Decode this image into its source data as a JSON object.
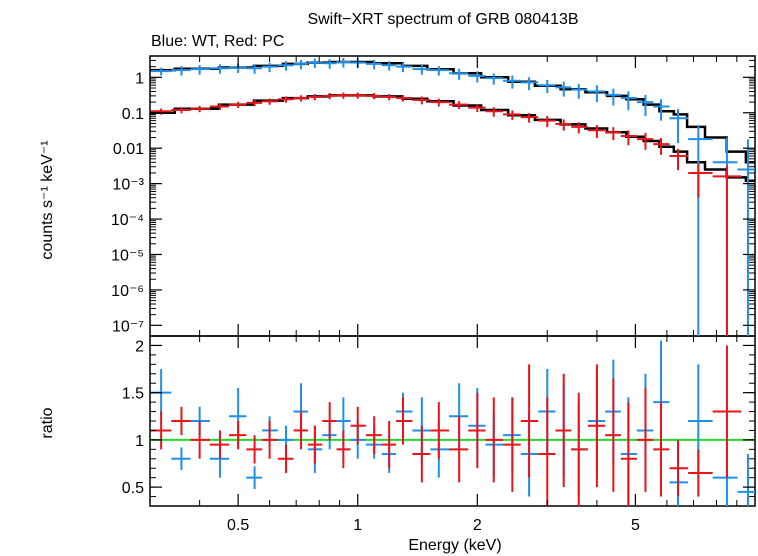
{
  "chart_data": [
    {
      "panel": "spectrum",
      "type": "scatter",
      "title": "Swift−XRT spectrum of GRB 080413B",
      "subtitle": "Blue: WT, Red: PC",
      "xlabel": "Energy (keV)",
      "ylabel": "counts s⁻¹ keV⁻¹",
      "xscale": "log",
      "yscale": "log",
      "xlim": [
        0.3,
        10
      ],
      "ylim": [
        5e-08,
        4
      ],
      "grid": false,
      "colors": {
        "WT": "#1f8fe8",
        "PC": "#e8141a",
        "model": "#000000"
      },
      "yticks": [
        {
          "value": 1,
          "label": "1"
        },
        {
          "value": 0.1,
          "label": "0.1"
        },
        {
          "value": 0.01,
          "label": "0.01"
        },
        {
          "value": 0.001,
          "label": "10⁻³"
        },
        {
          "value": 0.0001,
          "label": "10⁻⁴"
        },
        {
          "value": 1e-05,
          "label": "10⁻⁵"
        },
        {
          "value": 1e-06,
          "label": "10⁻⁶"
        },
        {
          "value": 1e-07,
          "label": "10⁻⁷"
        }
      ],
      "series": [
        {
          "id": "WT",
          "x": [
            0.32,
            0.36,
            0.4,
            0.45,
            0.5,
            0.55,
            0.6,
            0.66,
            0.72,
            0.78,
            0.85,
            0.92,
            1.0,
            1.1,
            1.2,
            1.3,
            1.45,
            1.6,
            1.8,
            2.0,
            2.2,
            2.45,
            2.7,
            3.0,
            3.3,
            3.6,
            4.0,
            4.4,
            4.8,
            5.3,
            5.8,
            6.4,
            7.2,
            8.5,
            9.6
          ],
          "y": [
            1.5,
            1.6,
            1.7,
            1.8,
            1.9,
            1.8,
            2.0,
            2.2,
            2.4,
            2.6,
            2.5,
            2.7,
            2.6,
            2.4,
            2.2,
            2.0,
            1.7,
            1.6,
            1.3,
            1.1,
            0.95,
            0.8,
            0.72,
            0.6,
            0.52,
            0.45,
            0.4,
            0.32,
            0.26,
            0.2,
            0.15,
            0.07,
            0.018,
            0.004,
            0.0025
          ],
          "err": [
            0.25,
            0.3,
            0.3,
            0.3,
            0.3,
            0.3,
            0.3,
            0.3,
            0.3,
            0.3,
            0.3,
            0.3,
            0.3,
            0.3,
            0.3,
            0.3,
            0.3,
            0.3,
            0.35,
            0.35,
            0.35,
            0.4,
            0.4,
            0.4,
            0.45,
            0.45,
            0.5,
            0.5,
            0.55,
            0.6,
            0.6,
            0.8,
            1.5,
            4.0,
            6.0
          ]
        },
        {
          "id": "PC",
          "x": [
            0.32,
            0.36,
            0.4,
            0.45,
            0.5,
            0.55,
            0.6,
            0.66,
            0.72,
            0.78,
            0.85,
            0.92,
            1.0,
            1.1,
            1.2,
            1.3,
            1.45,
            1.6,
            1.8,
            2.0,
            2.2,
            2.45,
            2.7,
            3.0,
            3.3,
            3.6,
            4.0,
            4.4,
            4.8,
            5.3,
            5.8,
            6.4,
            7.2,
            8.5
          ],
          "y": [
            0.11,
            0.12,
            0.13,
            0.15,
            0.17,
            0.19,
            0.21,
            0.24,
            0.26,
            0.28,
            0.3,
            0.31,
            0.31,
            0.3,
            0.28,
            0.26,
            0.23,
            0.2,
            0.17,
            0.14,
            0.11,
            0.09,
            0.075,
            0.06,
            0.048,
            0.04,
            0.032,
            0.028,
            0.022,
            0.018,
            0.013,
            0.006,
            0.002,
            0.0016
          ],
          "err": [
            0.2,
            0.2,
            0.2,
            0.2,
            0.2,
            0.2,
            0.2,
            0.2,
            0.2,
            0.2,
            0.2,
            0.2,
            0.2,
            0.2,
            0.2,
            0.2,
            0.25,
            0.25,
            0.25,
            0.25,
            0.3,
            0.3,
            0.3,
            0.35,
            0.35,
            0.35,
            0.4,
            0.4,
            0.45,
            0.5,
            0.5,
            0.6,
            0.8,
            1.0
          ]
        }
      ],
      "model_lines": [
        {
          "id": "WT-model",
          "x": [
            0.3,
            0.4,
            0.5,
            0.6,
            0.7,
            0.8,
            0.9,
            1.0,
            1.2,
            1.4,
            1.6,
            1.9,
            2.2,
            2.6,
            3.0,
            3.5,
            4.0,
            4.5,
            5.0,
            5.5,
            6.0,
            6.5,
            7.0,
            8.0,
            9.0,
            10.0
          ],
          "y": [
            1.6,
            1.75,
            1.9,
            2.1,
            2.4,
            2.6,
            2.7,
            2.7,
            2.5,
            2.1,
            1.7,
            1.3,
            1.0,
            0.75,
            0.58,
            0.46,
            0.38,
            0.3,
            0.24,
            0.17,
            0.11,
            0.09,
            0.04,
            0.02,
            0.008,
            0.004
          ]
        },
        {
          "id": "PC-model",
          "x": [
            0.3,
            0.4,
            0.5,
            0.6,
            0.7,
            0.8,
            0.9,
            1.0,
            1.2,
            1.4,
            1.6,
            1.9,
            2.2,
            2.6,
            3.0,
            3.5,
            4.0,
            4.5,
            5.0,
            5.5,
            6.0,
            6.5,
            7.0,
            8.0,
            9.0,
            10.0
          ],
          "y": [
            0.1,
            0.13,
            0.17,
            0.22,
            0.26,
            0.29,
            0.31,
            0.31,
            0.29,
            0.25,
            0.21,
            0.16,
            0.12,
            0.085,
            0.063,
            0.047,
            0.036,
            0.028,
            0.021,
            0.016,
            0.011,
            0.008,
            0.004,
            0.0025,
            0.0015,
            0.0012
          ]
        }
      ]
    },
    {
      "panel": "ratio",
      "type": "scatter",
      "xlabel": "Energy (keV)",
      "ylabel": "ratio",
      "xscale": "log",
      "xlim": [
        0.3,
        10
      ],
      "ylim": [
        0.3,
        2.1
      ],
      "grid": false,
      "reference_line": {
        "y": 1,
        "color": "#22dd22"
      },
      "xticks": [
        {
          "value": 0.5,
          "label": "0.5"
        },
        {
          "value": 1,
          "label": "1"
        },
        {
          "value": 2,
          "label": "2"
        },
        {
          "value": 5,
          "label": "5"
        }
      ],
      "yticks": [
        {
          "value": 0.5,
          "label": "0.5"
        },
        {
          "value": 1,
          "label": "1"
        },
        {
          "value": 1.5,
          "label": "1.5"
        },
        {
          "value": 2,
          "label": "2"
        }
      ],
      "series": [
        {
          "id": "WT",
          "x": [
            0.32,
            0.36,
            0.4,
            0.45,
            0.5,
            0.55,
            0.6,
            0.66,
            0.72,
            0.78,
            0.85,
            0.92,
            1.0,
            1.1,
            1.2,
            1.3,
            1.45,
            1.6,
            1.8,
            2.0,
            2.2,
            2.45,
            2.7,
            3.0,
            3.3,
            3.6,
            4.0,
            4.4,
            4.8,
            5.3,
            5.8,
            6.4,
            7.2,
            8.5,
            9.6
          ],
          "y": [
            1.5,
            0.8,
            1.2,
            0.8,
            1.25,
            0.6,
            1.1,
            1.0,
            1.3,
            0.9,
            1.05,
            1.2,
            1.0,
            0.95,
            0.85,
            1.3,
            1.1,
            0.9,
            1.25,
            1.15,
            0.95,
            1.05,
            0.85,
            1.3,
            1.1,
            0.9,
            1.2,
            1.3,
            0.85,
            1.1,
            1.4,
            0.55,
            1.2,
            0.6,
            0.45
          ],
          "err": [
            0.25,
            0.12,
            0.15,
            0.2,
            0.3,
            0.12,
            0.15,
            0.15,
            0.3,
            0.25,
            0.15,
            0.25,
            0.2,
            0.15,
            0.2,
            0.2,
            0.35,
            0.3,
            0.35,
            0.4,
            0.35,
            0.4,
            0.45,
            0.45,
            0.5,
            0.5,
            0.55,
            0.55,
            0.6,
            0.6,
            0.65,
            0.3,
            0.6,
            0.3,
            0.4
          ]
        },
        {
          "id": "PC",
          "x": [
            0.32,
            0.36,
            0.4,
            0.45,
            0.5,
            0.55,
            0.6,
            0.66,
            0.72,
            0.78,
            0.85,
            0.92,
            1.0,
            1.1,
            1.2,
            1.3,
            1.45,
            1.6,
            1.8,
            2.0,
            2.2,
            2.45,
            2.7,
            3.0,
            3.3,
            3.6,
            4.0,
            4.4,
            4.8,
            5.3,
            5.8,
            6.4,
            7.2,
            8.5
          ],
          "y": [
            1.1,
            1.2,
            1.0,
            0.95,
            1.05,
            0.9,
            1.0,
            0.8,
            1.1,
            0.95,
            1.2,
            0.9,
            1.15,
            1.05,
            0.95,
            1.2,
            0.85,
            1.1,
            0.9,
            1.1,
            1.0,
            0.95,
            1.2,
            0.85,
            1.1,
            0.9,
            1.15,
            1.05,
            0.8,
            1.0,
            0.9,
            0.7,
            0.65,
            1.3
          ],
          "err": [
            0.2,
            0.15,
            0.2,
            0.15,
            0.15,
            0.15,
            0.2,
            0.15,
            0.2,
            0.2,
            0.2,
            0.2,
            0.2,
            0.2,
            0.25,
            0.25,
            0.3,
            0.3,
            0.35,
            0.4,
            0.45,
            0.5,
            0.6,
            0.6,
            0.6,
            0.6,
            0.65,
            0.6,
            0.6,
            0.55,
            0.5,
            0.3,
            0.25,
            0.7
          ]
        }
      ]
    }
  ]
}
